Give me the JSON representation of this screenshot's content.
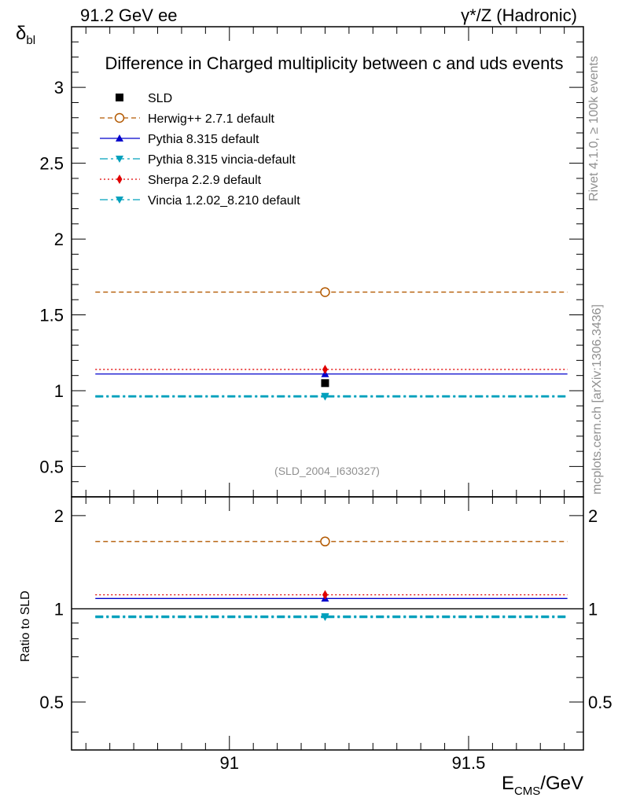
{
  "header": {
    "left": "91.2 GeV ee",
    "right_gamma": "γ",
    "right_rest": "*/Z (Hadronic)"
  },
  "side": {
    "rivet": "Rivet 4.1.0, ≥ 100k events",
    "mcplots": "mcplots.cern.ch [arXiv:1306.3436]"
  },
  "chart_data": [
    {
      "type": "scatter",
      "panel": "main",
      "title": "Difference in Charged multiplicity between c and uds events",
      "ylabel_main": "δ",
      "ylabel_sub": "bl",
      "ylim": [
        0.3,
        3.4
      ],
      "yticks": [
        0.5,
        1,
        1.5,
        2,
        2.5,
        3
      ],
      "ytick_labels": [
        "0.5",
        "1",
        "1.5",
        "2",
        "2.5",
        "3"
      ],
      "xlim": [
        90.67,
        91.74
      ],
      "x_bin": [
        90.7,
        91.7
      ],
      "x_point": 91.2,
      "watermark": "(SLD_2004_I630327)",
      "legend_position": "top-left",
      "series": [
        {
          "name": "SLD",
          "value": 1.05,
          "color": "#000000",
          "marker": "square",
          "line": "none"
        },
        {
          "name": "Herwig++ 2.7.1 default",
          "value": 1.65,
          "color": "#b35900",
          "marker": "open-circle",
          "line": "dashed"
        },
        {
          "name": "Pythia 8.315 default",
          "value": 1.11,
          "color": "#0000cc",
          "marker": "triangle-up",
          "line": "solid"
        },
        {
          "name": "Pythia 8.315 vincia-default",
          "value": 0.965,
          "color": "#00a0bc",
          "marker": "triangle-down",
          "line": "dashdot"
        },
        {
          "name": "Sherpa 2.2.9 default",
          "value": 1.14,
          "color": "#e00000",
          "marker": "diamond",
          "line": "dotted"
        },
        {
          "name": "Vincia 1.2.02_8.210 default",
          "value": 0.96,
          "color": "#00a0bc",
          "marker": "triangle-down",
          "line": "dashdot"
        }
      ]
    },
    {
      "type": "scatter",
      "panel": "ratio",
      "ylabel": "Ratio to SLD",
      "ylim": [
        0.35,
        2.3
      ],
      "yticks": [
        0.5,
        1,
        2
      ],
      "ytick_labels": [
        "0.5",
        "1",
        "2"
      ],
      "xlim": [
        90.67,
        91.74
      ],
      "xticks": [
        91,
        91.5
      ],
      "xtick_labels": [
        "91",
        "91.5"
      ],
      "xlabel_main": "E",
      "xlabel_sub": "CMS",
      "xlabel_tail": "/GeV",
      "series": [
        {
          "name": "Herwig++ 2.7.1 default",
          "value": 1.65,
          "color": "#b35900",
          "marker": "open-circle",
          "line": "dashed"
        },
        {
          "name": "Pythia 8.315 default",
          "value": 1.08,
          "color": "#0000cc",
          "marker": "triangle-up",
          "line": "solid"
        },
        {
          "name": "Pythia 8.315 vincia-default",
          "value": 0.945,
          "color": "#00a0bc",
          "marker": "triangle-down",
          "line": "dashdot"
        },
        {
          "name": "Sherpa 2.2.9 default",
          "value": 1.11,
          "color": "#e00000",
          "marker": "diamond",
          "line": "dotted"
        },
        {
          "name": "Vincia 1.2.02_8.210 default",
          "value": 0.94,
          "color": "#00a0bc",
          "marker": "triangle-down",
          "line": "dashdot"
        }
      ]
    }
  ]
}
